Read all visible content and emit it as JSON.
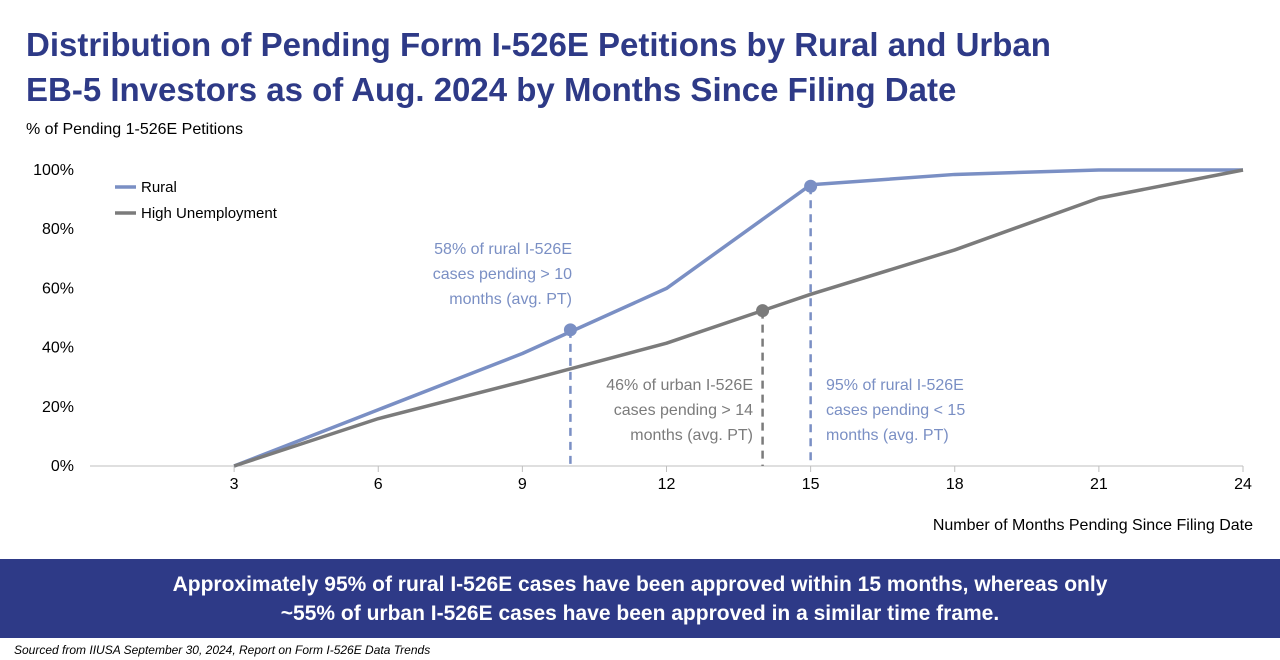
{
  "title_line1": "Distribution of Pending Form I-526E Petitions by Rural and Urban",
  "title_line2": "EB-5 Investors as of Aug. 2024 by Months Since Filing Date",
  "banner_line1": "Approximately 95% of rural I-526E cases have been approved within 15 months, whereas only",
  "banner_line2": "~55% of urban I-526E cases have been approved in a similar time frame.",
  "source": "Sourced from IIUSA September 30, 2024, Report on Form I-526E Data Trends",
  "colors": {
    "title": "#2e3a87",
    "rural": "#7a8fc4",
    "high_unemployment": "#7b7b7b",
    "banner": "#2e3a87"
  },
  "chart_data": {
    "type": "line",
    "ylabel": "% of Pending 1-526E Petitions",
    "xlabel": "Number of Months Pending Since Filing Date",
    "xlim": [
      0,
      24
    ],
    "ylim": [
      0,
      100
    ],
    "x_ticks": [
      3,
      6,
      9,
      12,
      15,
      18,
      21,
      24
    ],
    "y_ticks": [
      0,
      20,
      40,
      60,
      80,
      100
    ],
    "y_tick_labels": [
      "0%",
      "20%",
      "40%",
      "60%",
      "80%",
      "100%"
    ],
    "legend_position": "top-left",
    "series": [
      {
        "name": "Rural",
        "color": "#7a8fc4",
        "x": [
          3,
          6,
          9,
          12,
          15,
          18,
          21,
          24
        ],
        "values": [
          0,
          19,
          38,
          60,
          95,
          98.5,
          100,
          100
        ]
      },
      {
        "name": "High Unemployment",
        "color": "#7b7b7b",
        "x": [
          3,
          6,
          9,
          12,
          15,
          18,
          21,
          24
        ],
        "values": [
          0,
          16,
          28.5,
          41.5,
          58,
          73,
          90.5,
          100
        ]
      }
    ],
    "markers": [
      {
        "series": 0,
        "x": 10,
        "y": 46
      },
      {
        "series": 1,
        "x": 14,
        "y": 52.5
      },
      {
        "series": 0,
        "x": 15,
        "y": 94.5
      }
    ],
    "annotations": [
      {
        "series": 0,
        "lines": [
          "58% of rural I-526E",
          "cases pending > 10",
          "months (avg. PT)"
        ]
      },
      {
        "series": 1,
        "lines": [
          "46% of urban I-526E",
          "cases pending > 14",
          "months (avg. PT)"
        ]
      },
      {
        "series": 0,
        "lines": [
          "95% of rural I-526E",
          "cases pending < 15",
          "months (avg. PT)"
        ]
      }
    ]
  }
}
